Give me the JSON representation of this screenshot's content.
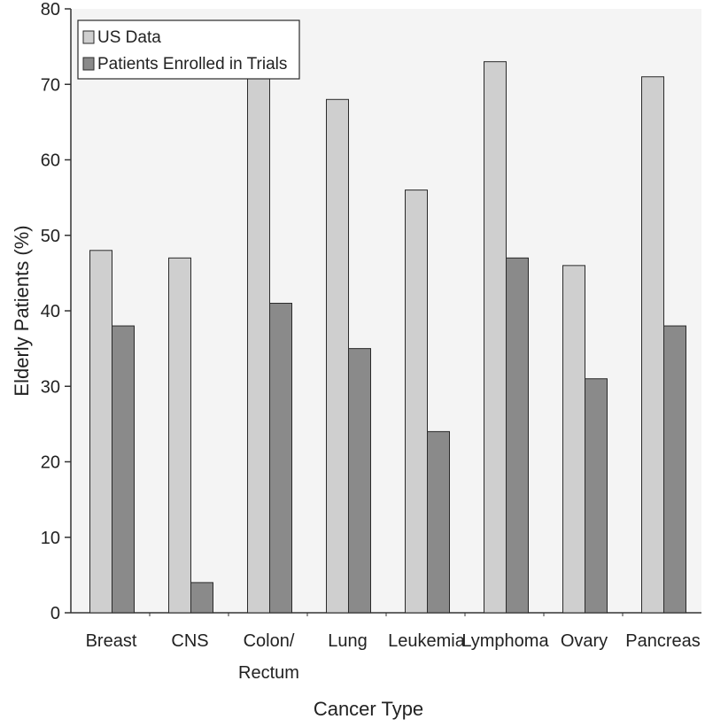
{
  "colors": {
    "us_data": "#cfcfcf",
    "trials": "#8a8a8a",
    "plot_bg": "#f4f4f4",
    "axis": "#333333"
  },
  "chart_data": {
    "type": "bar",
    "xlabel": "Cancer Type",
    "ylabel": "Elderly Patients (%)",
    "ylim": [
      0,
      80
    ],
    "yticks": [
      0,
      10,
      20,
      30,
      40,
      50,
      60,
      70,
      80
    ],
    "categories": [
      "Breast",
      "CNS",
      "Colon/ Rectum",
      "Lung",
      "Leukemia",
      "Lymphoma",
      "Ovary",
      "Pancreas"
    ],
    "category_lines": [
      [
        "Breast"
      ],
      [
        "CNS"
      ],
      [
        "Colon/",
        "Rectum"
      ],
      [
        "Lung"
      ],
      [
        "Leukemia"
      ],
      [
        "Lymphoma"
      ],
      [
        "Ovary"
      ],
      [
        "Pancreas"
      ]
    ],
    "series": [
      {
        "name": "US Data",
        "values": [
          48,
          47,
          71,
          68,
          56,
          73,
          46,
          71
        ]
      },
      {
        "name": "Patients Enrolled in Trials",
        "values": [
          38,
          4,
          41,
          35,
          24,
          47,
          31,
          38
        ]
      }
    ],
    "legend_position": "top-left",
    "grid": false
  }
}
